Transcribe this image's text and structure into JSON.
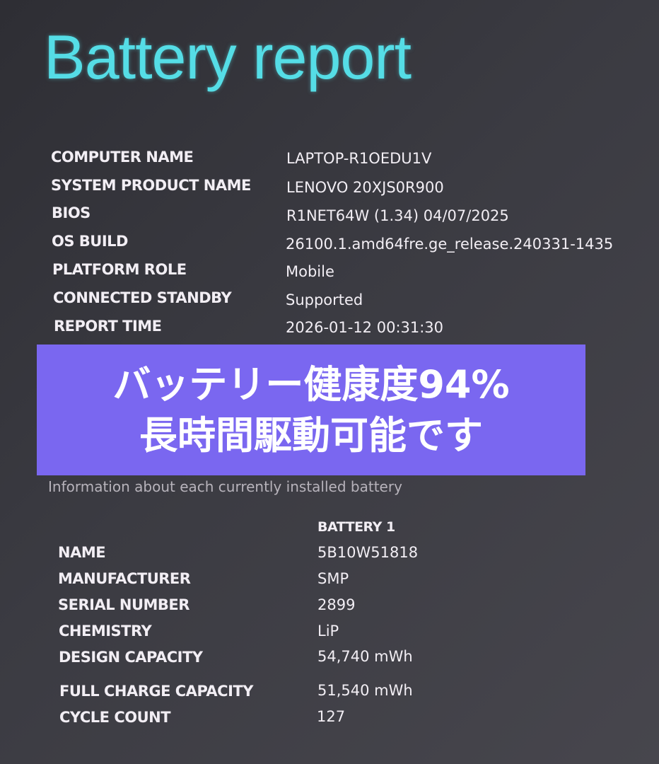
{
  "title": "Battery report",
  "system": [
    {
      "label": "COMPUTER NAME",
      "value": "LAPTOP-R1OEDU1V"
    },
    {
      "label": "SYSTEM PRODUCT NAME",
      "value": "LENOVO 20XJS0R900"
    },
    {
      "label": "BIOS",
      "value": "R1NET64W (1.34) 04/07/2025"
    },
    {
      "label": "OS BUILD",
      "value": "26100.1.amd64fre.ge_release.240331-1435"
    },
    {
      "label": "PLATFORM ROLE",
      "value": "Mobile"
    },
    {
      "label": "CONNECTED STANDBY",
      "value": "Supported"
    },
    {
      "label": "REPORT TIME",
      "value": "2026-01-12  00:31:30"
    }
  ],
  "overlay": {
    "line1": "バッテリー健康度94%",
    "line2": "長時間駆動可能です",
    "color": "#7a67f0"
  },
  "installed": {
    "description": "Information about each currently installed battery",
    "header": "BATTERY 1",
    "rows": [
      {
        "label": "NAME",
        "value": "5B10W51818"
      },
      {
        "label": "MANUFACTURER",
        "value": "SMP"
      },
      {
        "label": "SERIAL NUMBER",
        "value": "2899"
      },
      {
        "label": "CHEMISTRY",
        "value": "LiP"
      },
      {
        "label": "DESIGN CAPACITY",
        "value": "54,740 mWh"
      },
      {
        "label": "FULL CHARGE CAPACITY",
        "value": "51,540 mWh"
      },
      {
        "label": "CYCLE COUNT",
        "value": "127"
      }
    ]
  }
}
